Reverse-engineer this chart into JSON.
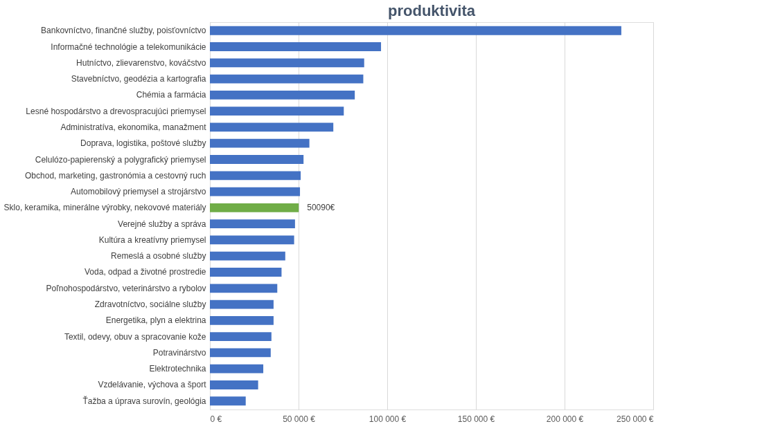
{
  "chart_data": {
    "type": "bar",
    "orientation": "horizontal",
    "title": "produktivita",
    "categories": [
      "Bankovníctvo, finančné služby, poisťovníctvo",
      "Informačné technológie a telekomunikácie",
      "Hutníctvo, zlievarenstvo, kováčstvo",
      "Stavebníctvo, geodézia a kartografia",
      "Chémia a farmácia",
      "Lesné hospodárstvo a drevospracujúci priemysel",
      "Administratíva, ekonomika, manažment",
      "Doprava, logistika, poštové služby",
      "Celulózo-papierenský a polygrafický priemysel",
      "Obchod, marketing, gastronómia a cestovný ruch",
      "Automobilový priemysel a strojárstvo",
      "Sklo, keramika, minerálne výrobky, nekovové materiály",
      "Verejné služby a správa",
      "Kultúra a kreatívny priemysel",
      "Remeslá a osobné služby",
      "Voda, odpad a životné prostredie",
      "Poľnohospodárstvo, veterinárstvo a rybolov",
      "Zdravotníctvo, sociálne služby",
      "Energetika, plyn a elektrina",
      "Textil, odevy, obuv a spracovanie kože",
      "Potravinárstvo",
      "Elektrotechnika",
      "Vzdelávanie, výchova a šport",
      "Ťažba a úprava surovín, geológia"
    ],
    "values": [
      232000,
      96500,
      87000,
      86500,
      81700,
      75500,
      69600,
      56100,
      52800,
      51200,
      50800,
      50090,
      48000,
      47500,
      42500,
      40400,
      38000,
      35900,
      35900,
      34700,
      34300,
      30100,
      27200,
      20200
    ],
    "colors": [
      "#4472c4",
      "#4472c4",
      "#4472c4",
      "#4472c4",
      "#4472c4",
      "#4472c4",
      "#4472c4",
      "#4472c4",
      "#4472c4",
      "#4472c4",
      "#4472c4",
      "#70ad47",
      "#4472c4",
      "#4472c4",
      "#4472c4",
      "#4472c4",
      "#4472c4",
      "#4472c4",
      "#4472c4",
      "#4472c4",
      "#4472c4",
      "#4472c4",
      "#4472c4",
      "#4472c4"
    ],
    "value_labels": [
      null,
      null,
      null,
      null,
      null,
      null,
      null,
      null,
      null,
      null,
      null,
      "50090€",
      null,
      null,
      null,
      null,
      null,
      null,
      null,
      null,
      null,
      null,
      null,
      null
    ],
    "xlim": [
      0,
      250000
    ],
    "xticks": [
      {
        "value": 0,
        "label": "0 €"
      },
      {
        "value": 50000,
        "label": "50 000 €"
      },
      {
        "value": 100000,
        "label": "100 000 €"
      },
      {
        "value": 150000,
        "label": "150 000 €"
      },
      {
        "value": 200000,
        "label": "200 000 €"
      },
      {
        "value": 250000,
        "label": "250 000 €"
      }
    ],
    "grid": "x"
  }
}
